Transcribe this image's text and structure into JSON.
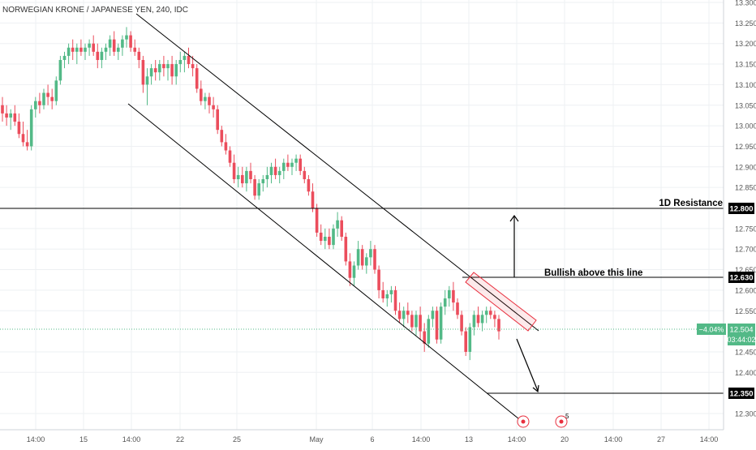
{
  "header": {
    "symbol_title": "NORWEGIAN KRONE / JAPANESE YEN, 240, IDC"
  },
  "colors": {
    "up": "#53b987",
    "down": "#eb4d5c",
    "line": "#000000",
    "grid": "#eef0f3",
    "axis_text": "#555555",
    "price_tag": "#000000",
    "current_tag": "#53b987",
    "box": "#e8303f",
    "box_fill": "rgba(232,48,63,0.10)",
    "dotted_current": "#53b987"
  },
  "chart_data": {
    "type": "candlestick",
    "title": "NORWEGIAN KRONE / JAPANESE YEN, 240, IDC",
    "xlabel": "",
    "ylabel": "",
    "ylim": [
      12.25,
      13.3
    ],
    "y_ticks": [
      "13.300",
      "13.250",
      "13.200",
      "13.150",
      "13.100",
      "13.050",
      "13.000",
      "12.950",
      "12.900",
      "12.850",
      "12.750",
      "12.700",
      "12.650",
      "12.600",
      "12.550",
      "12.450",
      "12.400",
      "12.300"
    ],
    "x_ticks": [
      "14:00",
      "15",
      "14:00",
      "22",
      "25",
      "May",
      "6",
      "14:00",
      "13",
      "14:00",
      "20",
      "14:00",
      "27",
      "14:00"
    ],
    "x_range": [
      0,
      152
    ],
    "candles": [
      {
        "x": 0,
        "o": 13.05,
        "h": 13.07,
        "l": 13.01,
        "c": 13.03
      },
      {
        "x": 1,
        "o": 13.03,
        "h": 13.05,
        "l": 13.0,
        "c": 13.02
      },
      {
        "x": 2,
        "o": 13.02,
        "h": 13.04,
        "l": 12.99,
        "c": 13.03
      },
      {
        "x": 3,
        "o": 13.03,
        "h": 13.05,
        "l": 13.0,
        "c": 13.01
      },
      {
        "x": 4,
        "o": 13.01,
        "h": 13.03,
        "l": 12.97,
        "c": 12.98
      },
      {
        "x": 5,
        "o": 12.98,
        "h": 13.01,
        "l": 12.95,
        "c": 12.96
      },
      {
        "x": 6,
        "o": 12.96,
        "h": 12.99,
        "l": 12.94,
        "c": 12.95
      },
      {
        "x": 7,
        "o": 12.95,
        "h": 13.05,
        "l": 12.94,
        "c": 13.04
      },
      {
        "x": 8,
        "o": 13.04,
        "h": 13.07,
        "l": 13.02,
        "c": 13.06
      },
      {
        "x": 9,
        "o": 13.06,
        "h": 13.08,
        "l": 13.03,
        "c": 13.05
      },
      {
        "x": 10,
        "o": 13.05,
        "h": 13.09,
        "l": 13.04,
        "c": 13.08
      },
      {
        "x": 11,
        "o": 13.08,
        "h": 13.1,
        "l": 13.05,
        "c": 13.07
      },
      {
        "x": 12,
        "o": 13.07,
        "h": 13.09,
        "l": 13.04,
        "c": 13.06
      },
      {
        "x": 13,
        "o": 13.06,
        "h": 13.12,
        "l": 13.05,
        "c": 13.11
      },
      {
        "x": 14,
        "o": 13.11,
        "h": 13.17,
        "l": 13.1,
        "c": 13.16
      },
      {
        "x": 15,
        "o": 13.16,
        "h": 13.18,
        "l": 13.14,
        "c": 13.17
      },
      {
        "x": 16,
        "o": 13.17,
        "h": 13.2,
        "l": 13.15,
        "c": 13.19
      },
      {
        "x": 17,
        "o": 13.19,
        "h": 13.21,
        "l": 13.16,
        "c": 13.18
      },
      {
        "x": 18,
        "o": 13.18,
        "h": 13.2,
        "l": 13.15,
        "c": 13.19
      },
      {
        "x": 19,
        "o": 13.19,
        "h": 13.21,
        "l": 13.17,
        "c": 13.18
      },
      {
        "x": 20,
        "o": 13.18,
        "h": 13.2,
        "l": 13.16,
        "c": 13.19
      },
      {
        "x": 21,
        "o": 13.19,
        "h": 13.21,
        "l": 13.17,
        "c": 13.2
      },
      {
        "x": 22,
        "o": 13.2,
        "h": 13.22,
        "l": 13.17,
        "c": 13.18
      },
      {
        "x": 23,
        "o": 13.18,
        "h": 13.2,
        "l": 13.14,
        "c": 13.16
      },
      {
        "x": 24,
        "o": 13.16,
        "h": 13.19,
        "l": 13.14,
        "c": 13.18
      },
      {
        "x": 25,
        "o": 13.18,
        "h": 13.2,
        "l": 13.16,
        "c": 13.19
      },
      {
        "x": 26,
        "o": 13.19,
        "h": 13.22,
        "l": 13.17,
        "c": 13.21
      },
      {
        "x": 27,
        "o": 13.21,
        "h": 13.23,
        "l": 13.17,
        "c": 13.18
      },
      {
        "x": 28,
        "o": 13.18,
        "h": 13.2,
        "l": 13.16,
        "c": 13.19
      },
      {
        "x": 29,
        "o": 13.19,
        "h": 13.22,
        "l": 13.17,
        "c": 13.21
      },
      {
        "x": 30,
        "o": 13.21,
        "h": 13.24,
        "l": 13.19,
        "c": 13.22
      },
      {
        "x": 31,
        "o": 13.22,
        "h": 13.23,
        "l": 13.18,
        "c": 13.19
      },
      {
        "x": 32,
        "o": 13.19,
        "h": 13.21,
        "l": 13.17,
        "c": 13.18
      },
      {
        "x": 33,
        "o": 13.18,
        "h": 13.19,
        "l": 13.14,
        "c": 13.16
      },
      {
        "x": 34,
        "o": 13.16,
        "h": 13.17,
        "l": 13.08,
        "c": 13.1
      },
      {
        "x": 35,
        "o": 13.1,
        "h": 13.14,
        "l": 13.05,
        "c": 13.12
      },
      {
        "x": 36,
        "o": 13.12,
        "h": 13.15,
        "l": 13.1,
        "c": 13.14
      },
      {
        "x": 37,
        "o": 13.14,
        "h": 13.16,
        "l": 13.11,
        "c": 13.13
      },
      {
        "x": 38,
        "o": 13.13,
        "h": 13.16,
        "l": 13.11,
        "c": 13.15
      },
      {
        "x": 39,
        "o": 13.15,
        "h": 13.17,
        "l": 13.12,
        "c": 13.14
      },
      {
        "x": 40,
        "o": 13.14,
        "h": 13.16,
        "l": 13.11,
        "c": 13.15
      },
      {
        "x": 41,
        "o": 13.15,
        "h": 13.17,
        "l": 13.1,
        "c": 13.12
      },
      {
        "x": 42,
        "o": 13.12,
        "h": 13.16,
        "l": 13.1,
        "c": 13.15
      },
      {
        "x": 43,
        "o": 13.15,
        "h": 13.18,
        "l": 13.13,
        "c": 13.16
      },
      {
        "x": 44,
        "o": 13.16,
        "h": 13.18,
        "l": 13.13,
        "c": 13.17
      },
      {
        "x": 45,
        "o": 13.17,
        "h": 13.19,
        "l": 13.14,
        "c": 13.15
      },
      {
        "x": 46,
        "o": 13.15,
        "h": 13.17,
        "l": 13.12,
        "c": 13.14
      },
      {
        "x": 47,
        "o": 13.14,
        "h": 13.15,
        "l": 13.08,
        "c": 13.09
      },
      {
        "x": 48,
        "o": 13.09,
        "h": 13.11,
        "l": 13.05,
        "c": 13.06
      },
      {
        "x": 49,
        "o": 13.06,
        "h": 13.08,
        "l": 13.04,
        "c": 13.07
      },
      {
        "x": 50,
        "o": 13.07,
        "h": 13.08,
        "l": 13.03,
        "c": 13.05
      },
      {
        "x": 51,
        "o": 13.05,
        "h": 13.07,
        "l": 13.02,
        "c": 13.04
      },
      {
        "x": 52,
        "o": 13.04,
        "h": 13.05,
        "l": 12.98,
        "c": 12.99
      },
      {
        "x": 53,
        "o": 12.99,
        "h": 13.0,
        "l": 12.95,
        "c": 12.96
      },
      {
        "x": 54,
        "o": 12.96,
        "h": 12.98,
        "l": 12.93,
        "c": 12.94
      },
      {
        "x": 55,
        "o": 12.94,
        "h": 12.95,
        "l": 12.9,
        "c": 12.91
      },
      {
        "x": 56,
        "o": 12.91,
        "h": 12.93,
        "l": 12.86,
        "c": 12.87
      },
      {
        "x": 57,
        "o": 12.87,
        "h": 12.9,
        "l": 12.85,
        "c": 12.88
      },
      {
        "x": 58,
        "o": 12.88,
        "h": 12.9,
        "l": 12.85,
        "c": 12.86
      },
      {
        "x": 59,
        "o": 12.86,
        "h": 12.9,
        "l": 12.84,
        "c": 12.89
      },
      {
        "x": 60,
        "o": 12.89,
        "h": 12.91,
        "l": 12.86,
        "c": 12.87
      },
      {
        "x": 61,
        "o": 12.87,
        "h": 12.88,
        "l": 12.82,
        "c": 12.83
      },
      {
        "x": 62,
        "o": 12.83,
        "h": 12.87,
        "l": 12.82,
        "c": 12.86
      },
      {
        "x": 63,
        "o": 12.86,
        "h": 12.88,
        "l": 12.84,
        "c": 12.87
      },
      {
        "x": 64,
        "o": 12.87,
        "h": 12.9,
        "l": 12.85,
        "c": 12.88
      },
      {
        "x": 65,
        "o": 12.88,
        "h": 12.91,
        "l": 12.86,
        "c": 12.9
      },
      {
        "x": 66,
        "o": 12.9,
        "h": 12.92,
        "l": 12.87,
        "c": 12.88
      },
      {
        "x": 67,
        "o": 12.88,
        "h": 12.9,
        "l": 12.86,
        "c": 12.89
      },
      {
        "x": 68,
        "o": 12.89,
        "h": 12.92,
        "l": 12.87,
        "c": 12.91
      },
      {
        "x": 69,
        "o": 12.91,
        "h": 12.93,
        "l": 12.89,
        "c": 12.9
      },
      {
        "x": 70,
        "o": 12.9,
        "h": 12.92,
        "l": 12.88,
        "c": 12.91
      },
      {
        "x": 71,
        "o": 12.91,
        "h": 12.93,
        "l": 12.89,
        "c": 12.92
      },
      {
        "x": 72,
        "o": 12.92,
        "h": 12.93,
        "l": 12.88,
        "c": 12.89
      },
      {
        "x": 73,
        "o": 12.89,
        "h": 12.9,
        "l": 12.86,
        "c": 12.87
      },
      {
        "x": 74,
        "o": 12.87,
        "h": 12.88,
        "l": 12.83,
        "c": 12.84
      },
      {
        "x": 75,
        "o": 12.84,
        "h": 12.86,
        "l": 12.79,
        "c": 12.8
      },
      {
        "x": 76,
        "o": 12.8,
        "h": 12.81,
        "l": 12.73,
        "c": 12.74
      },
      {
        "x": 77,
        "o": 12.74,
        "h": 12.76,
        "l": 12.71,
        "c": 12.72
      },
      {
        "x": 78,
        "o": 12.72,
        "h": 12.75,
        "l": 12.7,
        "c": 12.73
      },
      {
        "x": 79,
        "o": 12.73,
        "h": 12.75,
        "l": 12.7,
        "c": 12.71
      },
      {
        "x": 80,
        "o": 12.71,
        "h": 12.76,
        "l": 12.7,
        "c": 12.75
      },
      {
        "x": 81,
        "o": 12.75,
        "h": 12.79,
        "l": 12.73,
        "c": 12.77
      },
      {
        "x": 82,
        "o": 12.77,
        "h": 12.78,
        "l": 12.72,
        "c": 12.73
      },
      {
        "x": 83,
        "o": 12.73,
        "h": 12.74,
        "l": 12.66,
        "c": 12.67
      },
      {
        "x": 84,
        "o": 12.67,
        "h": 12.69,
        "l": 12.61,
        "c": 12.63
      },
      {
        "x": 85,
        "o": 12.63,
        "h": 12.67,
        "l": 12.61,
        "c": 12.66
      },
      {
        "x": 86,
        "o": 12.66,
        "h": 12.72,
        "l": 12.65,
        "c": 12.7
      },
      {
        "x": 87,
        "o": 12.7,
        "h": 12.71,
        "l": 12.65,
        "c": 12.66
      },
      {
        "x": 88,
        "o": 12.66,
        "h": 12.69,
        "l": 12.64,
        "c": 12.68
      },
      {
        "x": 89,
        "o": 12.68,
        "h": 12.72,
        "l": 12.66,
        "c": 12.7
      },
      {
        "x": 90,
        "o": 12.7,
        "h": 12.71,
        "l": 12.64,
        "c": 12.65
      },
      {
        "x": 91,
        "o": 12.65,
        "h": 12.66,
        "l": 12.58,
        "c": 12.6
      },
      {
        "x": 92,
        "o": 12.6,
        "h": 12.62,
        "l": 12.57,
        "c": 12.58
      },
      {
        "x": 93,
        "o": 12.58,
        "h": 12.6,
        "l": 12.56,
        "c": 12.59
      },
      {
        "x": 94,
        "o": 12.59,
        "h": 12.61,
        "l": 12.57,
        "c": 12.6
      },
      {
        "x": 95,
        "o": 12.6,
        "h": 12.61,
        "l": 12.54,
        "c": 12.55
      },
      {
        "x": 96,
        "o": 12.55,
        "h": 12.57,
        "l": 12.52,
        "c": 12.53
      },
      {
        "x": 97,
        "o": 12.53,
        "h": 12.56,
        "l": 12.51,
        "c": 12.55
      },
      {
        "x": 98,
        "o": 12.55,
        "h": 12.57,
        "l": 12.52,
        "c": 12.54
      },
      {
        "x": 99,
        "o": 12.54,
        "h": 12.55,
        "l": 12.5,
        "c": 12.51
      },
      {
        "x": 100,
        "o": 12.51,
        "h": 12.55,
        "l": 12.49,
        "c": 12.54
      },
      {
        "x": 101,
        "o": 12.54,
        "h": 12.56,
        "l": 12.48,
        "c": 12.5
      },
      {
        "x": 102,
        "o": 12.5,
        "h": 12.52,
        "l": 12.45,
        "c": 12.47
      },
      {
        "x": 103,
        "o": 12.47,
        "h": 12.54,
        "l": 12.46,
        "c": 12.53
      },
      {
        "x": 104,
        "o": 12.53,
        "h": 12.56,
        "l": 12.51,
        "c": 12.55
      },
      {
        "x": 105,
        "o": 12.55,
        "h": 12.56,
        "l": 12.47,
        "c": 12.48
      },
      {
        "x": 106,
        "o": 12.48,
        "h": 12.57,
        "l": 12.47,
        "c": 12.56
      },
      {
        "x": 107,
        "o": 12.56,
        "h": 12.6,
        "l": 12.54,
        "c": 12.58
      },
      {
        "x": 108,
        "o": 12.58,
        "h": 12.61,
        "l": 12.56,
        "c": 12.6
      },
      {
        "x": 109,
        "o": 12.6,
        "h": 12.62,
        "l": 12.55,
        "c": 12.57
      },
      {
        "x": 110,
        "o": 12.57,
        "h": 12.58,
        "l": 12.53,
        "c": 12.54
      },
      {
        "x": 111,
        "o": 12.54,
        "h": 12.55,
        "l": 12.49,
        "c": 12.5
      },
      {
        "x": 112,
        "o": 12.5,
        "h": 12.51,
        "l": 12.44,
        "c": 12.45
      },
      {
        "x": 113,
        "o": 12.45,
        "h": 12.52,
        "l": 12.43,
        "c": 12.51
      },
      {
        "x": 114,
        "o": 12.51,
        "h": 12.55,
        "l": 12.49,
        "c": 12.54
      },
      {
        "x": 115,
        "o": 12.54,
        "h": 12.56,
        "l": 12.51,
        "c": 12.52
      },
      {
        "x": 116,
        "o": 12.52,
        "h": 12.55,
        "l": 12.5,
        "c": 12.54
      },
      {
        "x": 117,
        "o": 12.54,
        "h": 12.56,
        "l": 12.52,
        "c": 12.55
      },
      {
        "x": 118,
        "o": 12.55,
        "h": 12.56,
        "l": 12.53,
        "c": 12.54
      },
      {
        "x": 119,
        "o": 12.54,
        "h": 12.55,
        "l": 12.51,
        "c": 12.53
      },
      {
        "x": 120,
        "o": 12.53,
        "h": 12.54,
        "l": 12.48,
        "c": 12.5
      }
    ]
  },
  "annotations": {
    "resistance_1d": {
      "label": "1D Resistance",
      "price": 12.8,
      "tag": "12.800"
    },
    "bullish_line": {
      "label": "Bullish above this line",
      "price": 12.63,
      "tag": "12.630"
    },
    "target_line": {
      "price": 12.35,
      "tag": "12.350"
    },
    "current_price": {
      "price": 12.504,
      "tag": "12.504",
      "change": "−4.04%",
      "countdown": "03:44:02"
    },
    "event_badge": "5"
  }
}
